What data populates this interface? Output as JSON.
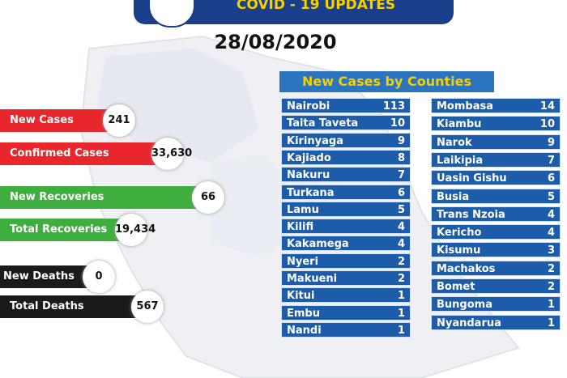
{
  "header": {
    "title": "COVID - 19 UPDATES",
    "date": "28/08/2020"
  },
  "stats": [
    {
      "label": "New Cases",
      "value": "241"
    },
    {
      "label": "Confirmed Cases",
      "value": "33,630"
    },
    {
      "label": "New Recoveries",
      "value": "66"
    },
    {
      "label": "Total Recoveries",
      "value": "19,434"
    },
    {
      "label": "New Deaths",
      "value": "0"
    },
    {
      "label": "Total Deaths",
      "value": "567"
    }
  ],
  "counties": {
    "title": "New Cases by Counties",
    "left": [
      [
        "Nairobi",
        113
      ],
      [
        "Taita Taveta",
        10
      ],
      [
        "Kirinyaga",
        9
      ],
      [
        "Kajiado",
        8
      ],
      [
        "Nakuru",
        7
      ],
      [
        "Turkana",
        6
      ],
      [
        "Lamu",
        5
      ],
      [
        "Kilifi",
        4
      ],
      [
        "Kakamega",
        4
      ],
      [
        "Nyeri",
        2
      ],
      [
        "Makueni",
        2
      ],
      [
        "Kitui",
        1
      ],
      [
        "Embu",
        1
      ],
      [
        "Nandi",
        1
      ]
    ],
    "right": [
      [
        "Mombasa",
        14
      ],
      [
        "Kiambu",
        10
      ],
      [
        "Narok",
        9
      ],
      [
        "Laikipia",
        7
      ],
      [
        "Uasin Gishu",
        6
      ],
      [
        "Busia",
        5
      ],
      [
        "Trans Nzoia",
        4
      ],
      [
        "Kericho",
        4
      ],
      [
        "Kisumu",
        3
      ],
      [
        "Machakos",
        2
      ],
      [
        "Bomet",
        2
      ],
      [
        "Bungoma",
        1
      ],
      [
        "Nyandarua",
        1
      ]
    ]
  }
}
